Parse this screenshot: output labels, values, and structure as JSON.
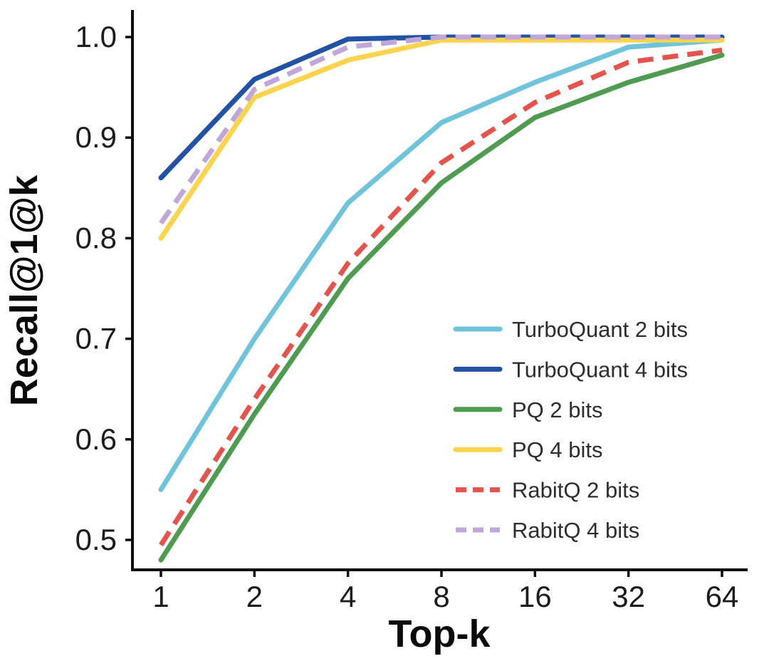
{
  "chart_data": {
    "type": "line",
    "title": "",
    "xlabel": "Top-k",
    "ylabel": "Recall@1@k",
    "x_scale": "log2",
    "x": [
      1,
      2,
      4,
      8,
      16,
      32,
      64
    ],
    "xtick_labels": [
      "1",
      "2",
      "4",
      "8",
      "16",
      "32",
      "64"
    ],
    "ytick_labels": [
      "0.5",
      "0.6",
      "0.7",
      "0.8",
      "0.9",
      "1.0"
    ],
    "ylim": [
      0.47,
      1.03
    ],
    "grid": false,
    "legend_position": "inside lower right",
    "axis_color": "#0d0d0d",
    "series": [
      {
        "name": "TurboQuant 2 bits",
        "color": "#6FC4DB",
        "dashed": false,
        "values": [
          0.55,
          0.7,
          0.835,
          0.915,
          0.955,
          0.99,
          0.997
        ]
      },
      {
        "name": "TurboQuant 4 bits",
        "color": "#2152A3",
        "dashed": false,
        "values": [
          0.86,
          0.958,
          0.998,
          1.0,
          1.0,
          1.0,
          1.0
        ]
      },
      {
        "name": "PQ 2 bits",
        "color": "#4E9B51",
        "dashed": false,
        "values": [
          0.48,
          0.625,
          0.76,
          0.855,
          0.92,
          0.955,
          0.982
        ]
      },
      {
        "name": "PQ 4 bits",
        "color": "#FAD44F",
        "dashed": false,
        "values": [
          0.8,
          0.94,
          0.977,
          0.997,
          0.997,
          0.997,
          0.997
        ]
      },
      {
        "name": "RabitQ 2 bits",
        "color": "#E4534C",
        "dashed": true,
        "values": [
          0.495,
          0.64,
          0.775,
          0.875,
          0.935,
          0.975,
          0.987
        ]
      },
      {
        "name": "RabitQ 4 bits",
        "color": "#C1A6D8",
        "dashed": true,
        "values": [
          0.815,
          0.948,
          0.99,
          1.0,
          1.0,
          1.0,
          1.0
        ]
      }
    ]
  }
}
